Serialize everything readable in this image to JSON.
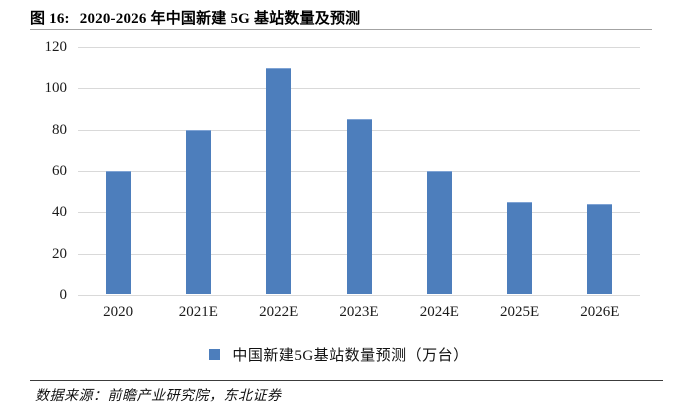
{
  "header": {
    "figure_label": "图 16:",
    "title": "2020-2026 年中国新建 5G 基站数量及预测"
  },
  "chart_data": {
    "type": "bar",
    "title": "图 16: 2020-2026 年中国新建 5G 基站数量及预测",
    "categories": [
      "2020",
      "2021E",
      "2022E",
      "2023E",
      "2024E",
      "2025E",
      "2026E"
    ],
    "values": [
      60,
      80,
      110,
      85,
      60,
      45,
      44
    ],
    "legend": [
      "中国新建5G基站数量预测（万台）"
    ],
    "xlabel": "",
    "ylabel": "",
    "ylim": [
      0,
      120
    ],
    "yticks": [
      0,
      20,
      40,
      60,
      80,
      100,
      120
    ],
    "grid": "horizontal",
    "legend_position": "bottom-center",
    "bar_color": "#4D7EBC",
    "gridline_color": "#D9D9D9"
  },
  "footer": {
    "source": "数据来源：前瞻产业研究院，东北证券"
  }
}
